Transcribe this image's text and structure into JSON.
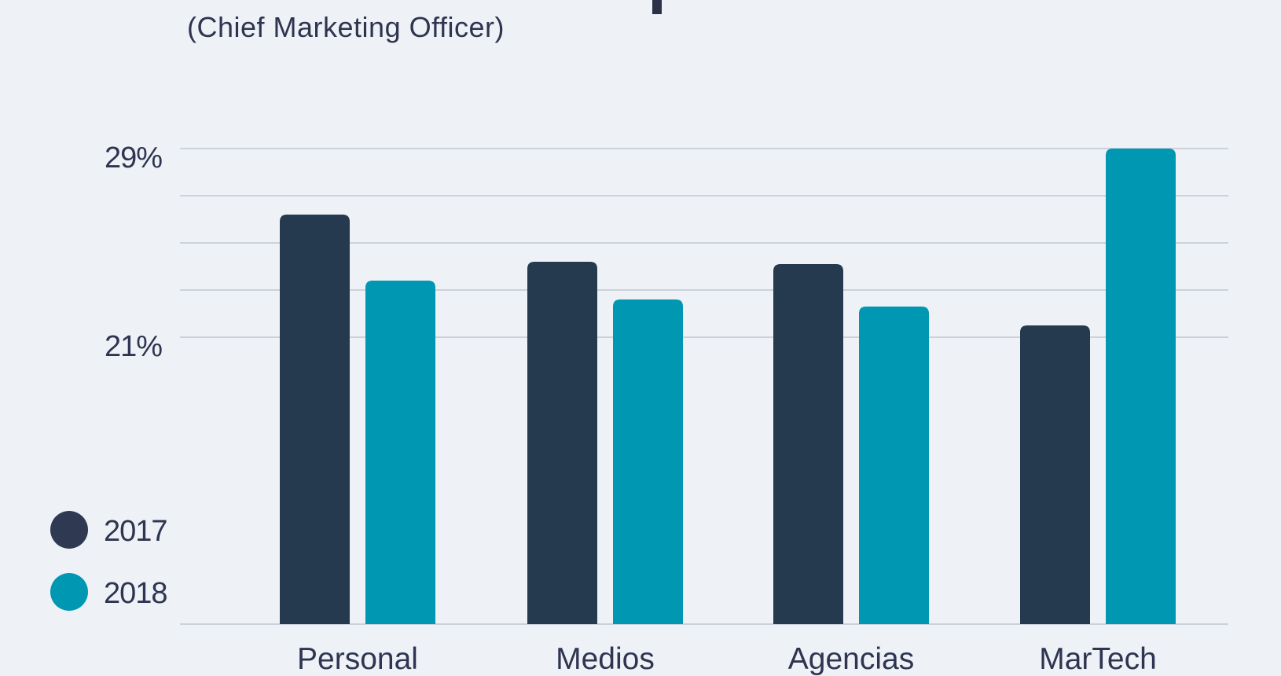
{
  "chart_data": {
    "type": "bar",
    "title": "",
    "subtitle": "(Chief Marketing Officer)",
    "xlabel": "",
    "ylabel": "",
    "categories": [
      "Personal",
      "Medios",
      "Agencias",
      "MarTech"
    ],
    "series": [
      {
        "name": "2017",
        "color": "#253a4e",
        "values": [
          26.2,
          24.2,
          24.1,
          21.5
        ]
      },
      {
        "name": "2018",
        "color": "#0097b2",
        "values": [
          23.4,
          22.6,
          22.3,
          29.0
        ]
      }
    ],
    "yticks": [
      {
        "value": 29,
        "label": "29%"
      },
      {
        "value": 21,
        "label": "21%"
      }
    ],
    "gridlines": [
      29,
      27,
      25,
      23,
      21
    ],
    "ylim": [
      8.8,
      29
    ],
    "grid": true,
    "legend": "bottom-left",
    "legend_colors": [
      "#2f3a52",
      "#0097b2"
    ]
  }
}
